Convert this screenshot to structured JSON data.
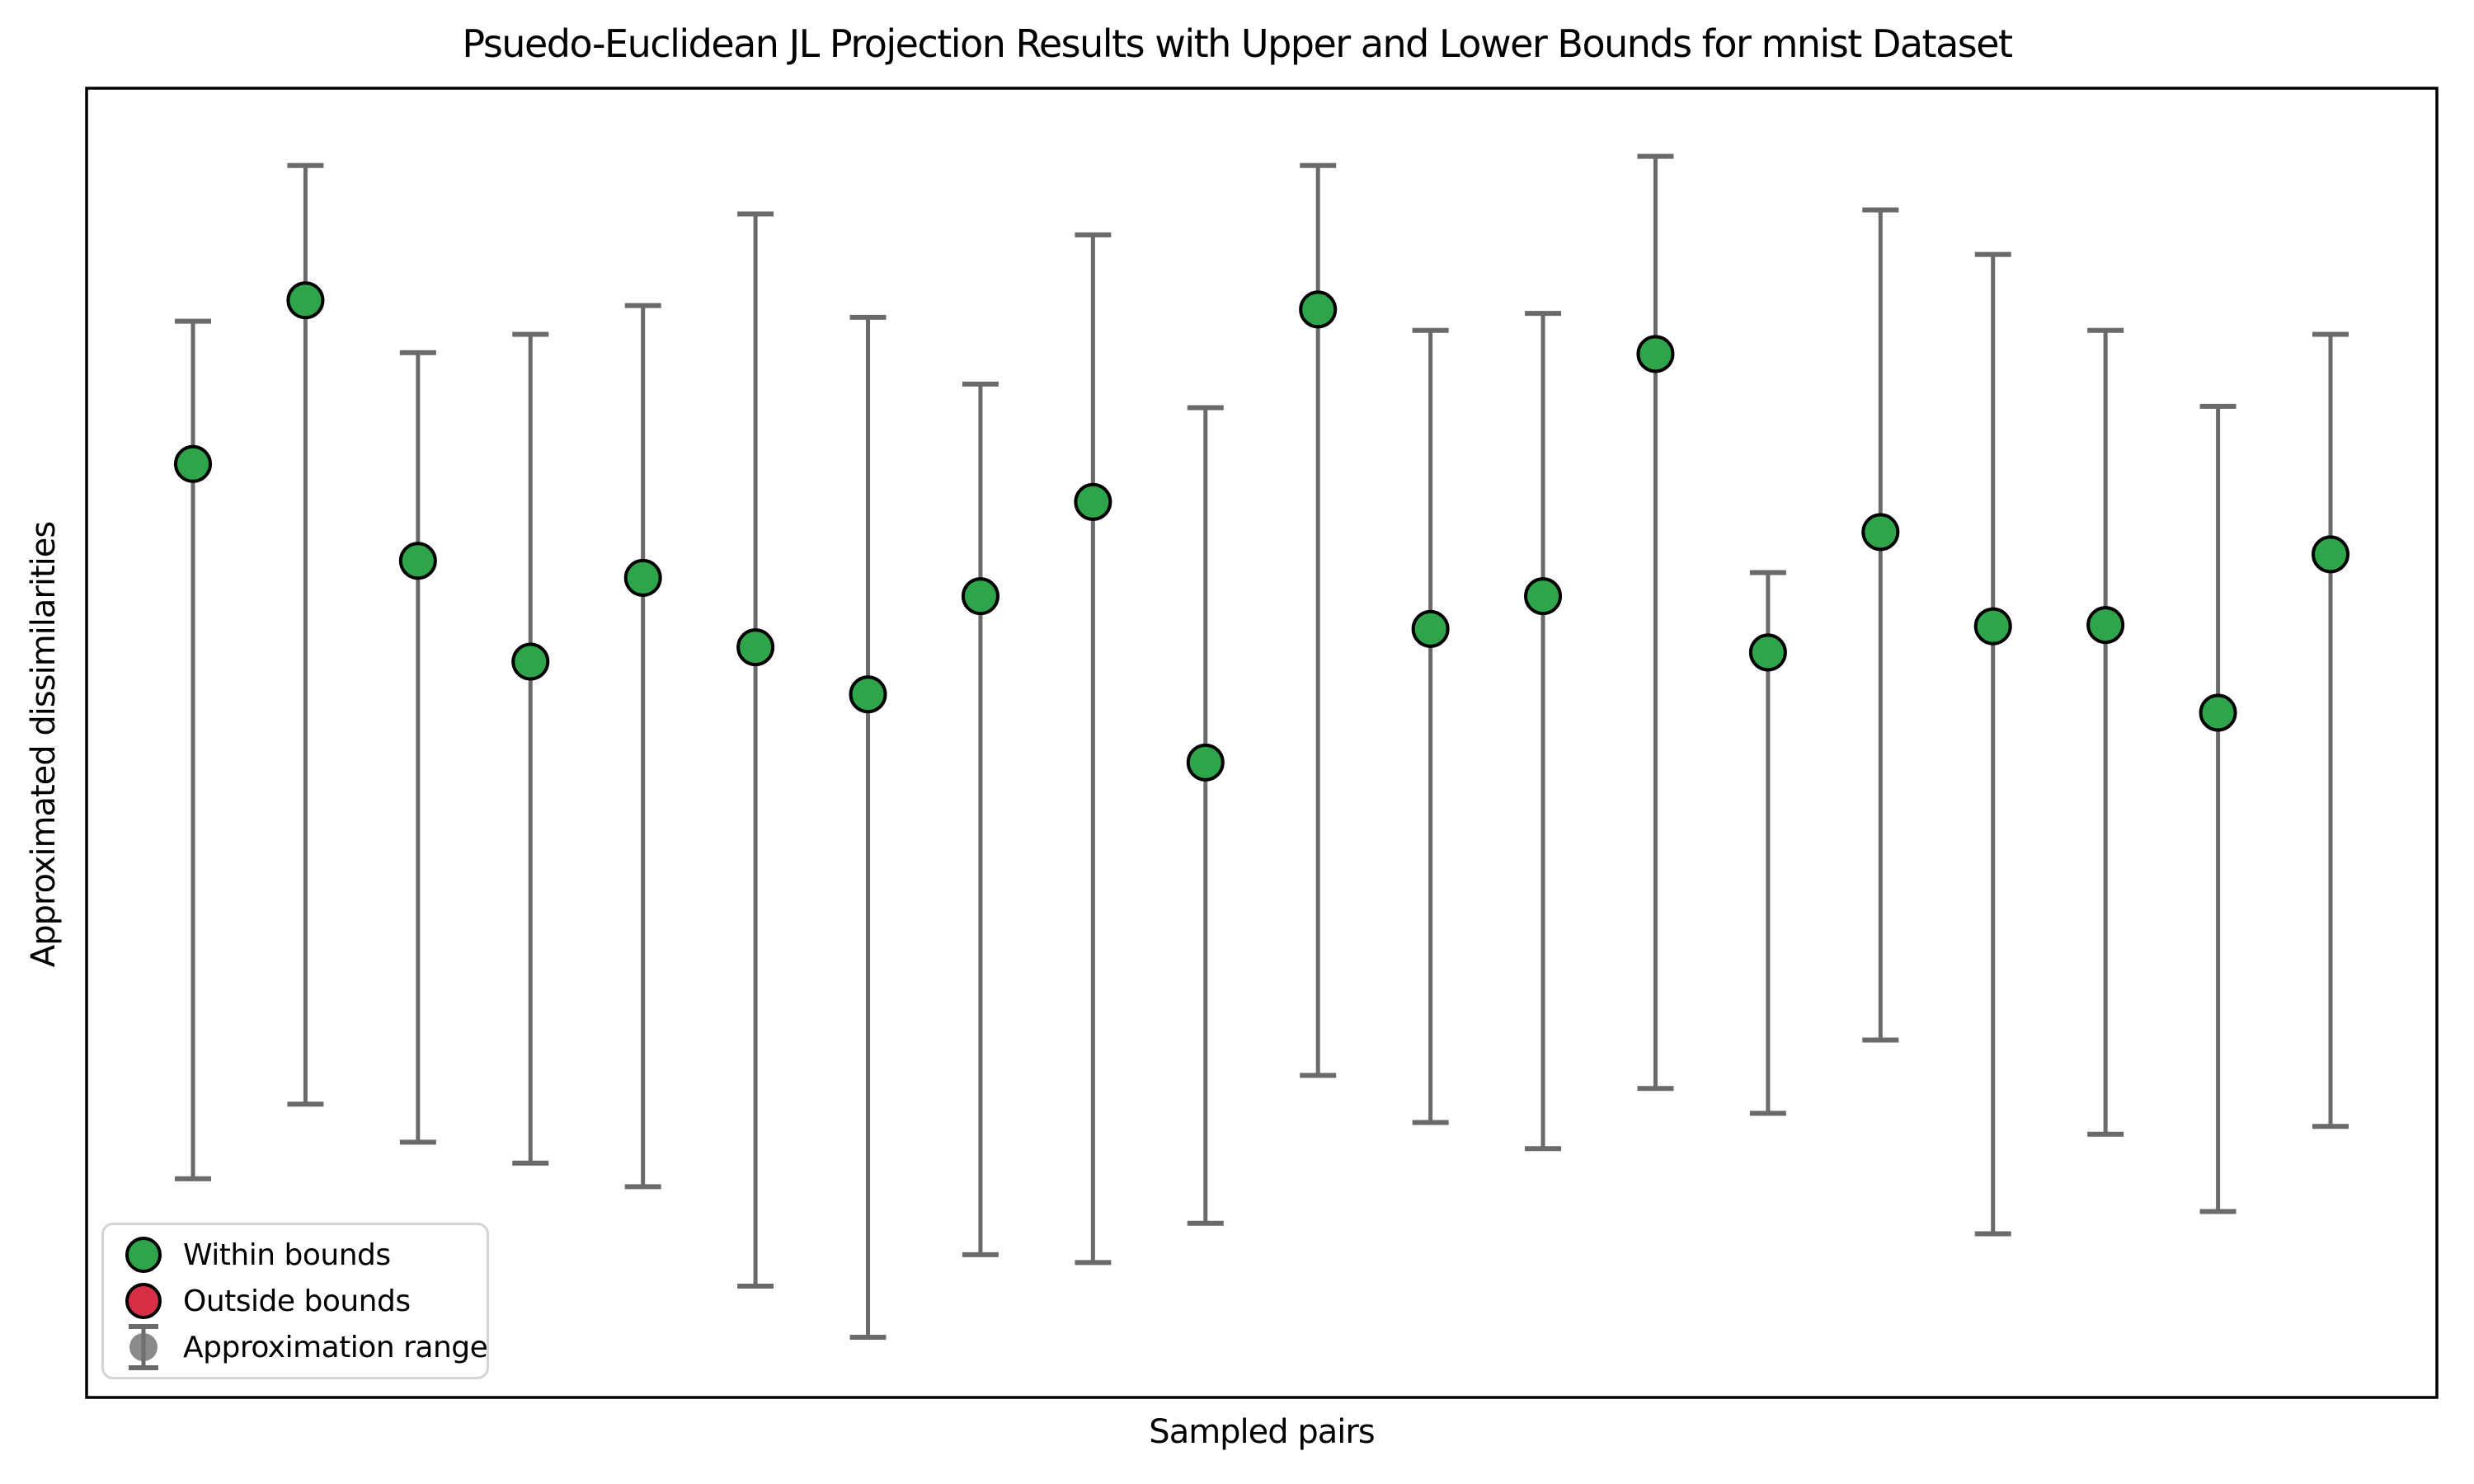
{
  "title": "Psuedo-Euclidean JL Projection Results with Upper and Lower Bounds for mnist Dataset",
  "axes": {
    "x_label": "Sampled pairs",
    "y_label": "Approximated dissimilarities",
    "x_tick_labels": [],
    "y_tick_labels": []
  },
  "colors": {
    "within": "#2EA44B",
    "outside": "#D62F46",
    "errorbar": "#6a6a6a",
    "legend_gray": "#8a8a8a",
    "marker_edge": "#000000",
    "axis_spine": "#000000",
    "legend_border": "#d4d4d4",
    "background": "#ffffff"
  },
  "legend": {
    "items": [
      {
        "label": "Within bounds",
        "color": "#2EA44B",
        "type": "circle"
      },
      {
        "label": "Outside bounds",
        "color": "#D62F46",
        "type": "circle"
      },
      {
        "label": "Approximation range",
        "color": "#8a8a8a",
        "type": "errorbar"
      }
    ],
    "position": "lower left"
  },
  "chart_data": {
    "type": "scatter",
    "subtype": "errorbar-scatter",
    "title": "Psuedo-Euclidean JL Projection Results with Upper and Lower Bounds for mnist Dataset",
    "xlabel": "Sampled pairs",
    "ylabel": "Approximated dissimilarities",
    "x": [
      1,
      2,
      3,
      4,
      5,
      6,
      7,
      8,
      9,
      10,
      11,
      12,
      13,
      14,
      15,
      16,
      17,
      18,
      19,
      20
    ],
    "series": [
      {
        "name": "approximated_dissimilarity",
        "values": [
          0.713,
          0.838,
          0.639,
          0.562,
          0.626,
          0.573,
          0.537,
          0.612,
          0.684,
          0.485,
          0.831,
          0.587,
          0.612,
          0.797,
          0.569,
          0.661,
          0.589,
          0.59,
          0.523,
          0.644
        ]
      },
      {
        "name": "upper_bound",
        "values": [
          0.822,
          0.941,
          0.798,
          0.812,
          0.834,
          0.904,
          0.825,
          0.774,
          0.888,
          0.756,
          0.941,
          0.815,
          0.828,
          0.948,
          0.63,
          0.907,
          0.873,
          0.815,
          0.757,
          0.812
        ]
      },
      {
        "name": "lower_bound",
        "values": [
          0.167,
          0.224,
          0.195,
          0.179,
          0.161,
          0.085,
          0.046,
          0.109,
          0.103,
          0.133,
          0.246,
          0.21,
          0.19,
          0.236,
          0.217,
          0.273,
          0.125,
          0.201,
          0.142,
          0.207
        ]
      }
    ],
    "point_status": [
      "within",
      "within",
      "within",
      "within",
      "within",
      "within",
      "within",
      "within",
      "within",
      "within",
      "within",
      "within",
      "within",
      "within",
      "within",
      "within",
      "within",
      "within",
      "within",
      "within"
    ],
    "ylim": [
      0,
      1
    ],
    "y_units": "normalized (axis shows no tick labels)",
    "grid": false,
    "legend_position": "lower left"
  }
}
